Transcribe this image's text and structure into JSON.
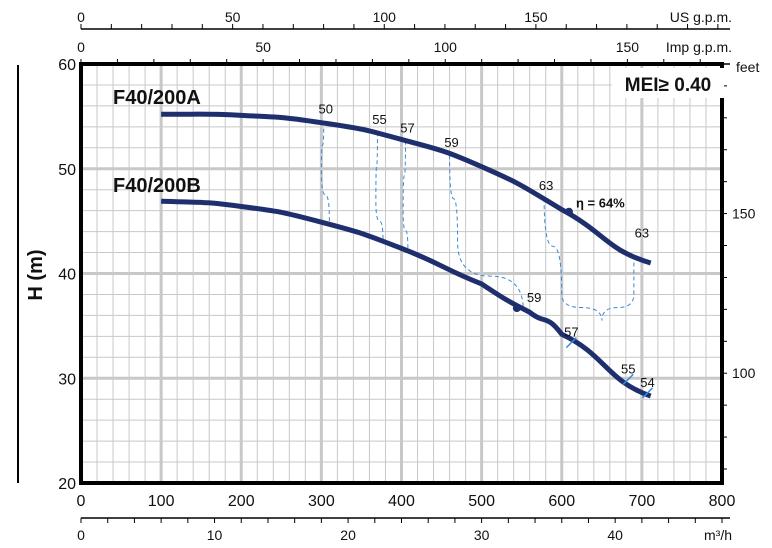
{
  "chart_data": {
    "type": "line",
    "ylabel": "H (m)",
    "xlim": [
      0,
      800
    ],
    "ylim": [
      20,
      60
    ],
    "x_ticks": [
      0,
      100,
      200,
      300,
      400,
      500,
      600,
      700,
      800
    ],
    "y_ticks": [
      20,
      30,
      40,
      50,
      60
    ],
    "secondary_axes": {
      "us_gpm": {
        "label": "US g.p.m.",
        "ticks": [
          0,
          50,
          100,
          150
        ]
      },
      "imp_gpm": {
        "label": "Imp g.p.m.",
        "ticks": [
          0,
          50,
          100,
          150
        ]
      },
      "m3h": {
        "label": "m³/h",
        "ticks": [
          0,
          10,
          20,
          30,
          40
        ]
      },
      "feet": {
        "label": "feet",
        "ticks": [
          100,
          150
        ]
      }
    },
    "badge": "MEI≥ 0.40",
    "series": [
      {
        "name": "F40/200A",
        "x": [
          100,
          200,
          300,
          400,
          500,
          600,
          711
        ],
        "y": [
          55.2,
          55.1,
          54.4,
          52.8,
          50.2,
          46.1,
          41.0
        ]
      },
      {
        "name": "F40/200B",
        "x": [
          100,
          200,
          300,
          400,
          500,
          560,
          600,
          711
        ],
        "y": [
          46.9,
          46.4,
          44.9,
          42.4,
          39.0,
          36.3,
          34.2,
          28.3
        ]
      }
    ],
    "efficiency_lines": [
      {
        "label": "50",
        "pts": [
          [
            303,
            54.5
          ],
          [
            300,
            50
          ],
          [
            310,
            45
          ]
        ]
      },
      {
        "label": "55",
        "pts": [
          [
            370,
            53.5
          ],
          [
            368,
            47
          ],
          [
            377,
            43
          ]
        ]
      },
      {
        "label": "57",
        "pts": [
          [
            405,
            52.7
          ],
          [
            402,
            46
          ],
          [
            408,
            42.2
          ]
        ]
      },
      {
        "label": "59",
        "pts": [
          [
            460,
            51.3
          ],
          [
            470,
            43
          ],
          [
            552,
            36.5
          ]
        ]
      },
      {
        "label": "63",
        "pts": [
          [
            578,
            47.2
          ],
          [
            600,
            38
          ],
          [
            650,
            35.5
          ],
          [
            690,
            38
          ],
          [
            690,
            42
          ]
        ]
      }
    ],
    "annotations": [
      {
        "text": "η = 64%",
        "x": 609,
        "y": 45.9,
        "point": true
      },
      {
        "text": "59",
        "x": 544,
        "y": 36.7,
        "point": true
      },
      {
        "text": "57",
        "x": 612,
        "y": 33.4,
        "cross": true
      },
      {
        "text": "55",
        "x": 683,
        "y": 29.9,
        "cross": true
      },
      {
        "text": "54",
        "x": 707,
        "y": 28.6,
        "cross": true
      },
      {
        "text": "63",
        "x": 700,
        "y": 42.3
      }
    ]
  }
}
